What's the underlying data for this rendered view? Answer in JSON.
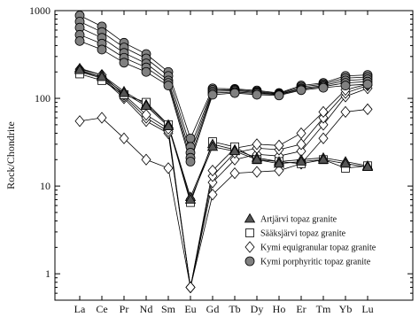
{
  "chart_data": {
    "type": "line",
    "title": "",
    "xlabel": "",
    "ylabel": "Rock/Chondrite",
    "yscale": "log",
    "ylim": [
      0.5,
      1000
    ],
    "yticks": [
      {
        "value": 1,
        "label": "1"
      },
      {
        "value": 10,
        "label": "10"
      },
      {
        "value": 100,
        "label": "100"
      },
      {
        "value": 1000,
        "label": "1000"
      }
    ],
    "categories": [
      "La",
      "Ce",
      "Pr",
      "Nd",
      "Sm",
      "Eu",
      "Gd",
      "Tb",
      "Dy",
      "Ho",
      "Er",
      "Tm",
      "Yb",
      "Lu"
    ],
    "grid": false,
    "legend_position": "lower-right",
    "series": [
      {
        "name": "Artjärvi topaz granite",
        "group": "artjarvi",
        "marker": "triangle",
        "color": "#555555",
        "show_in_legend": true,
        "values": [
          220,
          185,
          120,
          85,
          50,
          7.5,
          30,
          26,
          21,
          19,
          20,
          21,
          19,
          17
        ]
      },
      {
        "name": "Artjärvi topaz granite",
        "group": "artjarvi",
        "marker": "triangle",
        "color": "#555555",
        "show_in_legend": false,
        "values": [
          210,
          175,
          115,
          82,
          48,
          7,
          28,
          25,
          20,
          18,
          19,
          20,
          18,
          16.5
        ]
      },
      {
        "name": "Sääksjärvi topaz granite",
        "group": "saaksjarvi",
        "marker": "square",
        "color": "#ffffff",
        "show_in_legend": true,
        "values": [
          190,
          160,
          110,
          90,
          50,
          6.5,
          32,
          28,
          20,
          19,
          18,
          20,
          16,
          17
        ]
      },
      {
        "name": "Kymi equigranular topaz granite",
        "group": "kymi-eq",
        "marker": "diamond",
        "color": "#ffffff",
        "show_in_legend": true,
        "values": [
          55,
          60,
          35,
          20,
          16,
          0.7,
          8,
          14,
          14.5,
          15,
          18,
          35,
          70,
          75
        ]
      },
      {
        "name": "Kymi equigranular topaz granite",
        "group": "kymi-eq",
        "marker": "diamond",
        "color": "#ffffff",
        "show_in_legend": false,
        "values": [
          200,
          170,
          100,
          55,
          40,
          0.7,
          11,
          20,
          23,
          22,
          25,
          50,
          105,
          130
        ]
      },
      {
        "name": "Kymi equigranular topaz granite",
        "group": "kymi-eq",
        "marker": "diamond",
        "color": "#ffffff",
        "show_in_legend": false,
        "values": [
          205,
          175,
          105,
          60,
          42,
          0.7,
          13,
          24,
          27,
          26,
          30,
          60,
          115,
          140
        ]
      },
      {
        "name": "Kymi equigranular topaz granite",
        "group": "kymi-eq",
        "marker": "diamond",
        "color": "#ffffff",
        "show_in_legend": false,
        "values": [
          215,
          185,
          110,
          65,
          45,
          0.7,
          15,
          27,
          30,
          29,
          40,
          70,
          125,
          145
        ]
      },
      {
        "name": "Kymi porphyritic topaz granite",
        "group": "kymi-por",
        "marker": "circle",
        "color": "#808080",
        "show_in_legend": true,
        "values": [
          880,
          660,
          430,
          320,
          200,
          35,
          130,
          128,
          123,
          115,
          140,
          150,
          180,
          185
        ]
      },
      {
        "name": "Kymi porphyritic topaz granite",
        "group": "kymi-por",
        "marker": "circle",
        "color": "#808080",
        "show_in_legend": false,
        "values": [
          750,
          570,
          380,
          285,
          180,
          28,
          125,
          125,
          120,
          113,
          135,
          145,
          170,
          175
        ]
      },
      {
        "name": "Kymi porphyritic topaz granite",
        "group": "kymi-por",
        "marker": "circle",
        "color": "#808080",
        "show_in_legend": false,
        "values": [
          640,
          490,
          330,
          250,
          160,
          24,
          120,
          122,
          117,
          111,
          130,
          140,
          160,
          165
        ]
      },
      {
        "name": "Kymi porphyritic topaz granite",
        "group": "kymi-por",
        "marker": "circle",
        "color": "#808080",
        "show_in_legend": false,
        "values": [
          530,
          420,
          290,
          225,
          150,
          21,
          115,
          118,
          114,
          110,
          127,
          136,
          150,
          155
        ]
      },
      {
        "name": "Kymi porphyritic topaz granite",
        "group": "kymi-por",
        "marker": "circle",
        "color": "#808080",
        "show_in_legend": false,
        "values": [
          450,
          360,
          255,
          200,
          140,
          19,
          110,
          115,
          110,
          108,
          124,
          132,
          140,
          145
        ]
      }
    ]
  }
}
